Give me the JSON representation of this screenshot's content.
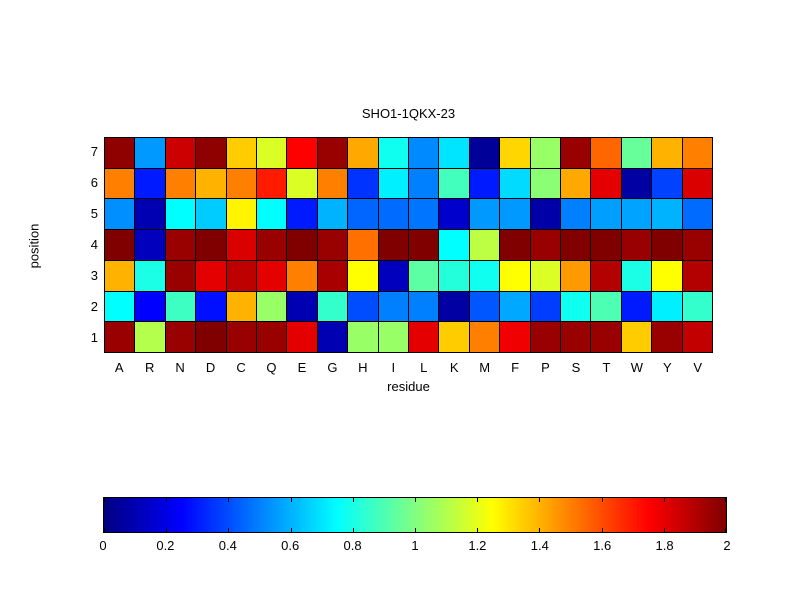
{
  "chart_data": {
    "type": "heatmap",
    "title": "SHO1-1QKX-23",
    "xlabel": "residue",
    "ylabel": "position",
    "x_categories": [
      "A",
      "R",
      "N",
      "D",
      "C",
      "Q",
      "E",
      "G",
      "H",
      "I",
      "L",
      "K",
      "M",
      "F",
      "P",
      "S",
      "T",
      "W",
      "Y",
      "V"
    ],
    "y_categories_top_to_bottom": [
      "7",
      "6",
      "5",
      "4",
      "3",
      "2",
      "1"
    ],
    "colormap": "jet",
    "color_range": [
      0,
      2
    ],
    "grid_lines": "on",
    "legend_position": "horizontal colorbar below plot",
    "colorbar_ticks": [
      0,
      0.2,
      0.4,
      0.6,
      0.8,
      1,
      1.2,
      1.4,
      1.6,
      1.8,
      2
    ],
    "colorbar_tick_labels": [
      "0",
      "0.2",
      "0.4",
      "0.6",
      "0.8",
      "1",
      "1.2",
      "1.4",
      "1.6",
      "1.8",
      "2"
    ],
    "values_rows_top_to_bottom": [
      [
        1.97,
        0.55,
        1.85,
        1.97,
        1.35,
        1.18,
        1.75,
        1.95,
        1.42,
        0.78,
        0.52,
        0.7,
        0.05,
        1.33,
        1.05,
        1.95,
        1.55,
        0.95,
        1.4,
        1.5
      ],
      [
        1.5,
        0.3,
        1.5,
        1.4,
        1.5,
        1.7,
        1.18,
        1.5,
        0.35,
        0.72,
        0.5,
        0.88,
        0.3,
        0.68,
        1.02,
        1.42,
        1.8,
        0.07,
        0.38,
        1.82
      ],
      [
        0.53,
        0.1,
        0.75,
        0.65,
        1.27,
        0.75,
        0.3,
        0.6,
        0.45,
        0.46,
        0.48,
        0.15,
        0.55,
        0.55,
        0.08,
        0.5,
        0.56,
        0.57,
        0.6,
        0.46
      ],
      [
        2.0,
        0.12,
        1.95,
        2.0,
        1.82,
        1.95,
        2.0,
        1.95,
        1.53,
        2.0,
        2.0,
        0.75,
        1.12,
        2.0,
        1.95,
        2.0,
        2.0,
        1.95,
        2.0,
        1.95
      ],
      [
        1.4,
        0.8,
        1.95,
        1.8,
        1.88,
        1.8,
        1.5,
        1.92,
        1.25,
        0.12,
        0.93,
        0.82,
        0.78,
        1.25,
        1.18,
        1.45,
        1.9,
        0.8,
        1.25,
        1.9
      ],
      [
        0.75,
        0.25,
        0.87,
        0.28,
        1.4,
        1.05,
        0.1,
        0.85,
        0.4,
        0.5,
        0.5,
        0.07,
        0.42,
        0.58,
        0.37,
        0.78,
        0.9,
        0.3,
        0.72,
        0.85
      ],
      [
        1.95,
        1.1,
        1.95,
        2.0,
        1.95,
        1.95,
        1.8,
        0.1,
        1.05,
        1.05,
        1.8,
        1.35,
        1.5,
        1.78,
        1.95,
        1.95,
        1.95,
        1.35,
        1.95,
        1.87
      ]
    ]
  },
  "colors": {
    "background": "#ffffff",
    "grid_line": "#000000",
    "text": "#000000",
    "jet_low": "#00008f",
    "jet_high": "#800000"
  }
}
